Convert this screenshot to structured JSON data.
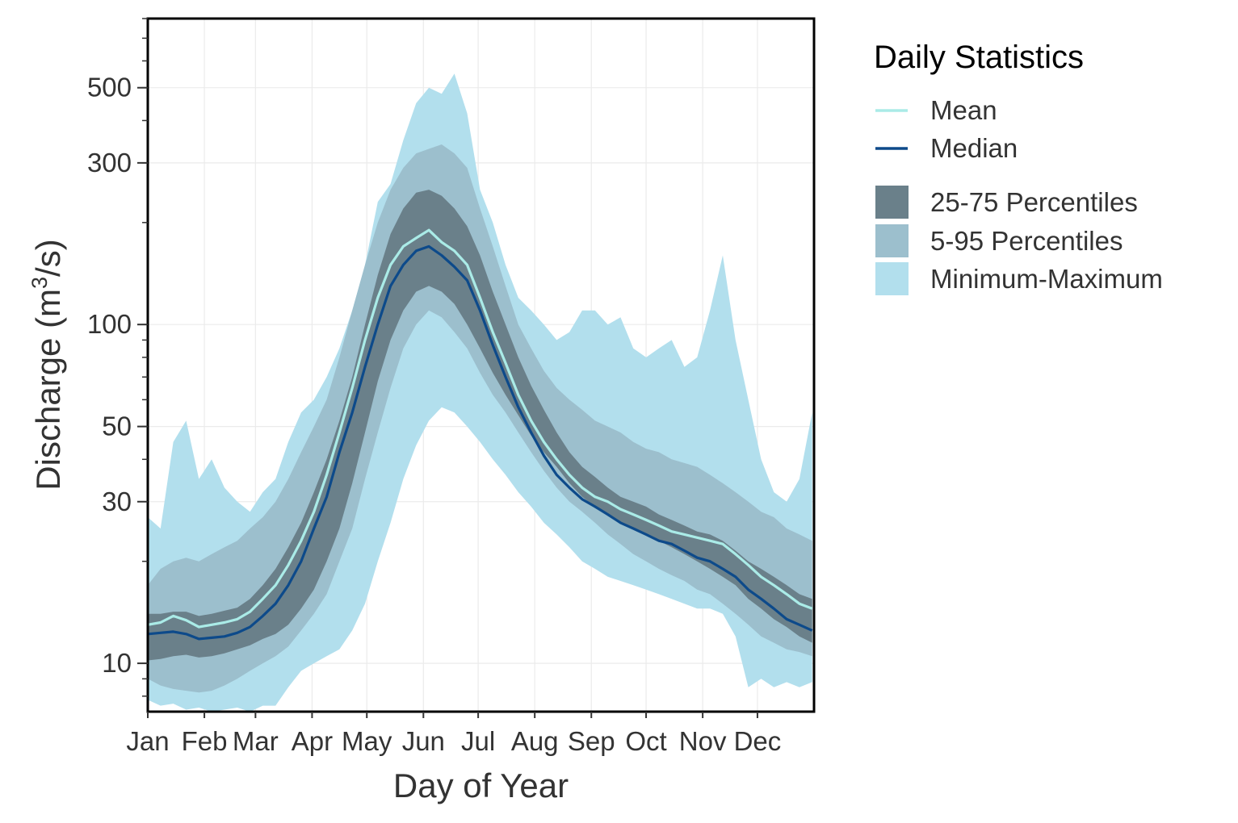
{
  "colors": {
    "mean": "#aaebe7",
    "median": "#0d4a8a",
    "p25_75": "#6a808a",
    "p5_95": "#9cbfcd",
    "min_max": "#b2dfed",
    "grid": "#ebebeb",
    "panel_border": "#000000"
  },
  "legend": {
    "title": "Daily Statistics",
    "items": [
      {
        "label": "Mean",
        "kind": "line",
        "color": "#aaebe7"
      },
      {
        "label": "Median",
        "kind": "line",
        "color": "#0d4a8a"
      },
      {
        "label": "25-75 Percentiles",
        "kind": "fill",
        "color": "#6a808a"
      },
      {
        "label": "5-95 Percentiles",
        "kind": "fill",
        "color": "#9cbfcd"
      },
      {
        "label": "Minimum-Maximum",
        "kind": "fill",
        "color": "#b2dfed"
      }
    ]
  },
  "chart_data": {
    "type": "area",
    "xlabel": "Day of Year",
    "ylabel_prefix": "Discharge (m",
    "ylabel_sup": "3",
    "ylabel_suffix": "/s)",
    "y_scale": "log",
    "ylim": [
      7.2,
      800
    ],
    "xlim": [
      1,
      366
    ],
    "grid": true,
    "legend_position": "right",
    "y_ticks": [
      10,
      30,
      50,
      100,
      300,
      500
    ],
    "x_ticks": [
      {
        "label": "Jan",
        "day": 1
      },
      {
        "label": "Feb",
        "day": 32
      },
      {
        "label": "Mar",
        "day": 60
      },
      {
        "label": "Apr",
        "day": 91
      },
      {
        "label": "May",
        "day": 121
      },
      {
        "label": "Jun",
        "day": 152
      },
      {
        "label": "Jul",
        "day": 182
      },
      {
        "label": "Aug",
        "day": 213
      },
      {
        "label": "Sep",
        "day": 244
      },
      {
        "label": "Oct",
        "day": 274
      },
      {
        "label": "Nov",
        "day": 305
      },
      {
        "label": "Dec",
        "day": 335
      }
    ],
    "x": [
      1,
      8,
      15,
      22,
      29,
      36,
      43,
      50,
      57,
      64,
      71,
      78,
      85,
      92,
      99,
      106,
      113,
      120,
      127,
      134,
      141,
      148,
      155,
      162,
      169,
      176,
      183,
      190,
      197,
      204,
      211,
      218,
      225,
      232,
      239,
      246,
      253,
      260,
      267,
      274,
      281,
      288,
      295,
      302,
      309,
      316,
      323,
      330,
      337,
      344,
      351,
      358,
      365
    ],
    "series": [
      {
        "name": "Minimum-Maximum",
        "role": "band",
        "lower": [
          7.8,
          7.5,
          7.6,
          7.3,
          7.4,
          7.2,
          7.3,
          7.4,
          7.2,
          7.5,
          7.5,
          8.5,
          9.5,
          10,
          10.5,
          11,
          12.5,
          15,
          20,
          26,
          35,
          44,
          52,
          57,
          55,
          50,
          45,
          40,
          36,
          32,
          29,
          26,
          24,
          22,
          20,
          19,
          18,
          17.5,
          17,
          16.5,
          16,
          15.5,
          15,
          14.5,
          14.5,
          14,
          12,
          8.5,
          9,
          8.5,
          8.8,
          8.5,
          8.8
        ],
        "upper": [
          27,
          25,
          45,
          52,
          35,
          40,
          33,
          30,
          28,
          32,
          35,
          45,
          55,
          60,
          70,
          85,
          110,
          150,
          230,
          260,
          350,
          450,
          500,
          480,
          550,
          420,
          250,
          200,
          150,
          120,
          110,
          100,
          90,
          95,
          110,
          110,
          100,
          105,
          85,
          80,
          85,
          90,
          75,
          80,
          110,
          160,
          90,
          60,
          40,
          32,
          30,
          35,
          55
        ]
      },
      {
        "name": "5-95 Percentiles",
        "role": "band",
        "lower": [
          9,
          8.6,
          8.4,
          8.3,
          8.2,
          8.3,
          8.6,
          9,
          9.5,
          10,
          10.5,
          11.2,
          12.5,
          14,
          16,
          20,
          25,
          35,
          48,
          65,
          85,
          100,
          110,
          105,
          95,
          85,
          72,
          62,
          55,
          48,
          42,
          37,
          33,
          30,
          28,
          26,
          24,
          22.5,
          21,
          20,
          19,
          18.2,
          17.5,
          16.5,
          16,
          15,
          14,
          13,
          12,
          11.5,
          11,
          10.8,
          10.5
        ],
        "upper": [
          17,
          19,
          20,
          20.5,
          20,
          21,
          22,
          23,
          25,
          27,
          30,
          35,
          42,
          50,
          60,
          80,
          110,
          150,
          200,
          250,
          290,
          320,
          330,
          340,
          320,
          290,
          220,
          170,
          130,
          100,
          85,
          73,
          65,
          60,
          56,
          52,
          50,
          48,
          45,
          43,
          42,
          40,
          39,
          38,
          36,
          34,
          32,
          30,
          28,
          27,
          25,
          24,
          23
        ]
      },
      {
        "name": "25-75 Percentiles",
        "role": "band",
        "lower": [
          10.2,
          10.3,
          10.5,
          10.6,
          10.4,
          10.5,
          10.7,
          11,
          11.3,
          11.8,
          12.2,
          13,
          14.5,
          16.5,
          20,
          25,
          34,
          48,
          68,
          90,
          110,
          125,
          130,
          125,
          115,
          100,
          85,
          72,
          62,
          54,
          47,
          42,
          38,
          34,
          31,
          29,
          27.5,
          26,
          25,
          24,
          23,
          22,
          21,
          20,
          19,
          18,
          17,
          15.5,
          14.5,
          13.5,
          12.8,
          12,
          11.5
        ],
        "upper": [
          14,
          14,
          14.2,
          14.2,
          13.8,
          14,
          14.3,
          14.6,
          15.5,
          17,
          19,
          22,
          26,
          32,
          40,
          52,
          70,
          100,
          140,
          185,
          220,
          245,
          250,
          240,
          220,
          195,
          160,
          125,
          100,
          80,
          66,
          56,
          48,
          42,
          38,
          35.5,
          33,
          31,
          30,
          29,
          27.5,
          26.5,
          25.5,
          24.5,
          24,
          23,
          21.5,
          20,
          19,
          18,
          17,
          16,
          15.5
        ]
      },
      {
        "name": "Mean",
        "role": "line",
        "values": [
          13,
          13.2,
          13.8,
          13.4,
          12.8,
          13,
          13.2,
          13.5,
          14.2,
          15.5,
          17,
          19.5,
          23,
          28,
          36,
          48,
          65,
          90,
          120,
          150,
          170,
          180,
          190,
          175,
          165,
          150,
          120,
          95,
          77,
          62,
          52,
          45,
          40,
          36,
          33,
          31,
          30,
          28.5,
          27.5,
          26.5,
          25.5,
          24.5,
          24,
          23.5,
          23,
          22.5,
          21,
          19.5,
          18,
          17,
          16,
          15,
          14.5
        ]
      },
      {
        "name": "Median",
        "role": "line",
        "values": [
          12.2,
          12.3,
          12.4,
          12.2,
          11.8,
          11.9,
          12,
          12.3,
          12.8,
          13.8,
          15,
          17,
          20,
          25,
          31,
          42,
          55,
          75,
          100,
          130,
          150,
          165,
          170,
          160,
          148,
          135,
          110,
          87,
          70,
          57,
          48,
          41,
          36,
          33,
          30.5,
          29,
          27.5,
          26,
          25,
          24,
          23,
          22.5,
          21.5,
          20.5,
          20,
          19,
          18,
          16.5,
          15.5,
          14.5,
          13.5,
          13,
          12.5
        ]
      }
    ]
  }
}
